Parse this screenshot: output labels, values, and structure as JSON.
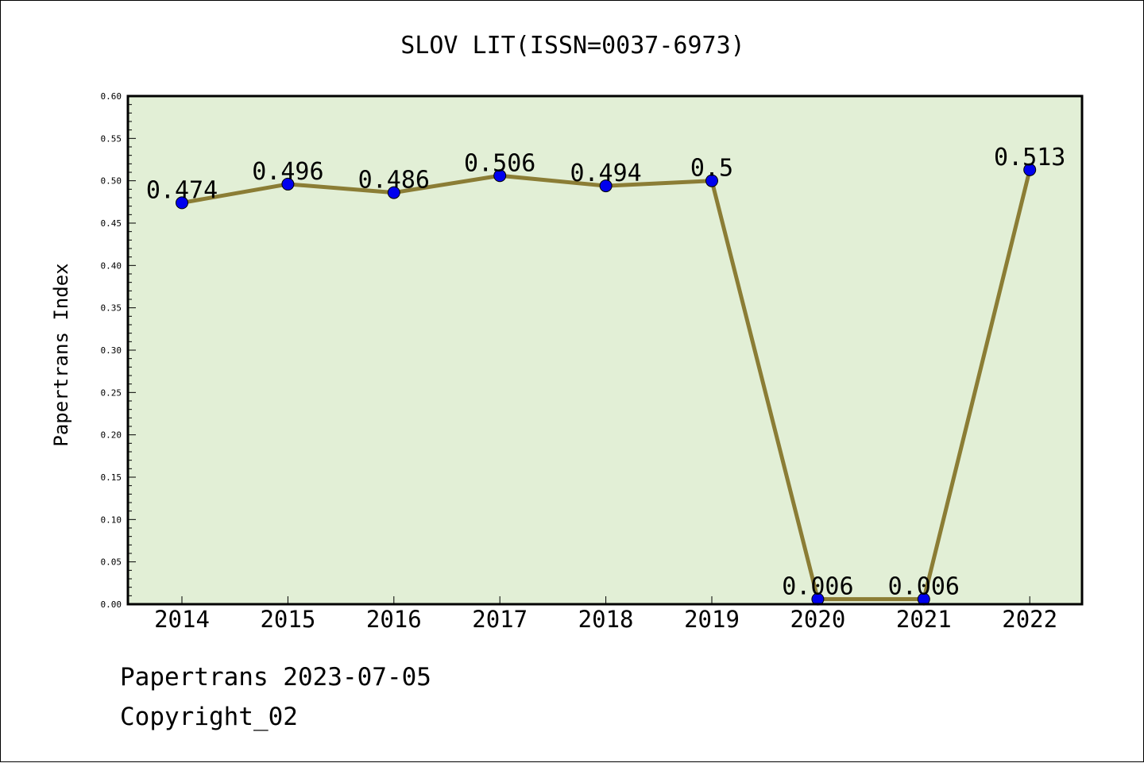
{
  "chart_data": {
    "type": "line",
    "title": "SLOV LIT(ISSN=0037-6973)",
    "xlabel": "",
    "ylabel": "Papertrans Index",
    "categories": [
      "2014",
      "2015",
      "2016",
      "2017",
      "2018",
      "2019",
      "2020",
      "2021",
      "2022"
    ],
    "values": [
      0.474,
      0.496,
      0.486,
      0.506,
      0.494,
      0.5,
      0.006,
      0.006,
      0.513
    ],
    "data_labels": [
      "0.474",
      "0.496",
      "0.486",
      "0.506",
      "0.494",
      "0.5",
      "0.006",
      "0.006",
      "0.513"
    ],
    "ylim": [
      0,
      0.6
    ],
    "yticks": [
      "0.00",
      "0.05",
      "0.10",
      "0.15",
      "0.20",
      "0.25",
      "0.30",
      "0.35",
      "0.40",
      "0.45",
      "0.50",
      "0.55",
      "0.60"
    ],
    "grid": false,
    "legend": "none",
    "colors": {
      "plot_background": "#e2efd6",
      "line": "#8b7d35",
      "marker": "#0000ee"
    }
  },
  "footer": {
    "source": "Papertrans 2023-07-05",
    "copyright": "Copyright_02"
  }
}
